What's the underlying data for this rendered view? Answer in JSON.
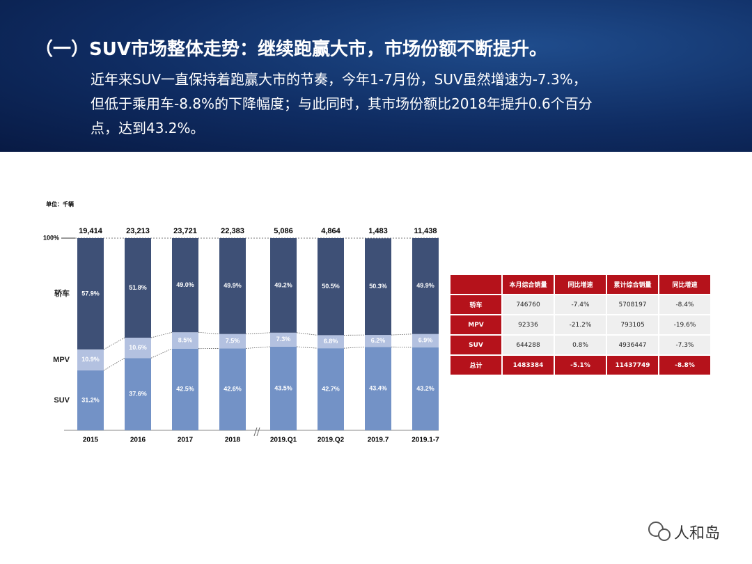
{
  "header": {
    "title": "（一）SUV市场整体走势：继续跑赢大市，市场份额不断提升。",
    "lines": [
      "近年来SUV一直保持着跑赢大市的节奏，今年1-7月份，SUV虽然增速为-7.3%，",
      "但低于乘用车-8.8%的下降幅度；与此同时，其市场份额比2018年提升0.6个百分",
      "点，达到43.2%。"
    ]
  },
  "chart_data": {
    "type": "stacked_bar_100",
    "unit": "单位：千辆",
    "categories": [
      "2015",
      "2016",
      "2017",
      "2018",
      "2019.Q1",
      "2019.Q2",
      "2019.7",
      "2019.1-7"
    ],
    "series": [
      {
        "name": "SUV",
        "color": "#7392c6",
        "values": [
          31.2,
          37.6,
          42.5,
          42.6,
          43.5,
          42.7,
          43.4,
          43.2
        ],
        "value_labels": [
          "31.2%",
          "37.6%",
          "42.5%",
          "42.6%",
          "43.5%",
          "42.7%",
          "43.4%",
          "43.2%"
        ]
      },
      {
        "name": "MPV",
        "color": "#b3c1e0",
        "values": [
          10.9,
          10.6,
          8.5,
          7.5,
          7.3,
          6.8,
          6.2,
          6.9
        ],
        "value_labels": [
          "10.9%",
          "10.6%",
          "8.5%",
          "7.5%",
          "7.3%",
          "6.8%",
          "6.2%",
          "6.9%"
        ]
      },
      {
        "name": "轿车",
        "color": "#3e5076",
        "values": [
          57.9,
          51.8,
          49.0,
          49.9,
          49.2,
          50.5,
          50.3,
          49.9
        ],
        "value_labels": [
          "57.9%",
          "51.8%",
          "49.0%",
          "49.9%",
          "49.2%",
          "50.5%",
          "50.3%",
          "49.9%"
        ]
      }
    ],
    "totals": {
      "values": [
        19414,
        23213,
        23721,
        22383,
        5086,
        4864,
        1483,
        11438
      ],
      "value_labels": [
        "19,414",
        "23,213",
        "23,721",
        "22,383",
        "5,086",
        "4,864",
        "1,483",
        "11,438"
      ]
    },
    "ylim": [
      0,
      100
    ],
    "yticks": [
      {
        "value": 100,
        "label": "100%"
      }
    ]
  },
  "table": {
    "header": [
      "本月综合销量",
      "同比增速",
      "累计综合销量",
      "同比增速"
    ],
    "rows": [
      [
        "轿车",
        "746760",
        "-7.4%",
        "5708197",
        "-8.4%"
      ],
      [
        "MPV",
        "92336",
        "-21.2%",
        "793105",
        "-19.6%"
      ],
      [
        "SUV",
        "644288",
        "0.8%",
        "4936447",
        "-7.3%"
      ],
      [
        "总计",
        "1483384",
        "-5.1%",
        "11437749",
        "-8.8%"
      ]
    ]
  },
  "watermark": "人和岛"
}
